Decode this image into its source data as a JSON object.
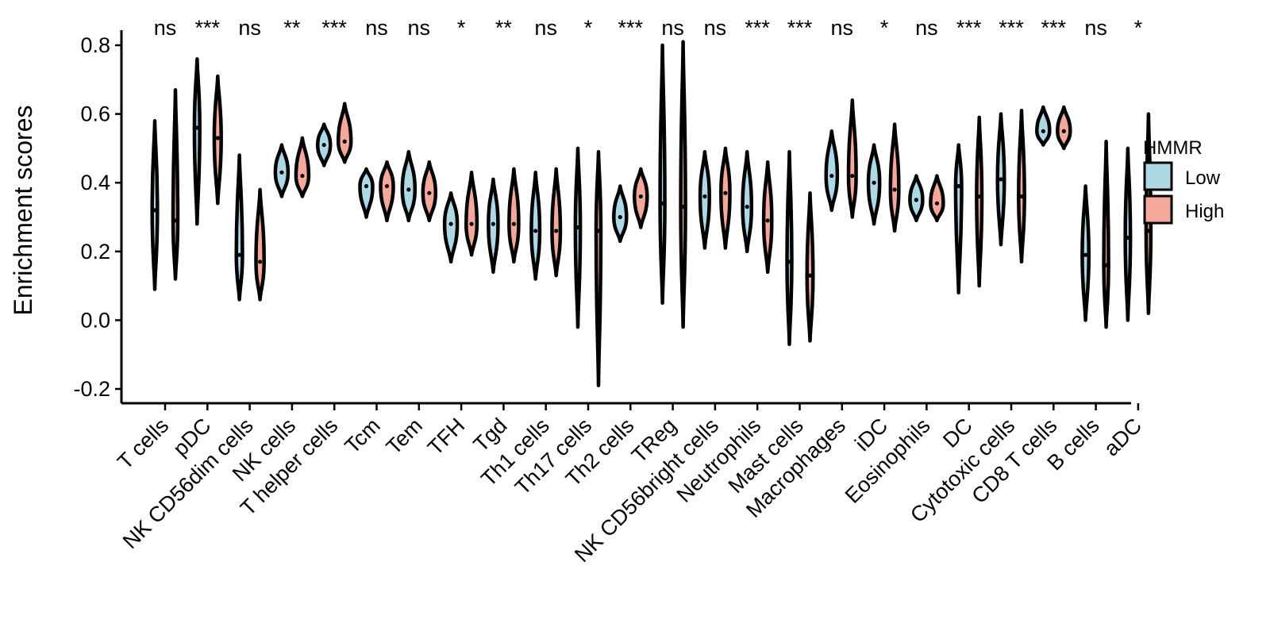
{
  "chart_data": {
    "type": "violin",
    "title": "",
    "xlabel": "",
    "ylabel": "Enrichment scores",
    "ylim": [
      -0.25,
      0.82
    ],
    "yticks": [
      -0.2,
      0.0,
      0.2,
      0.4,
      0.6,
      0.8
    ],
    "ytick_labels": [
      "-0.2",
      "0.0",
      "0.2",
      "0.4",
      "0.6",
      "0.8"
    ],
    "categories": [
      "T cells",
      "pDC",
      "NK CD56dim cells",
      "NK cells",
      "T helper cells",
      "Tcm",
      "Tem",
      "TFH",
      "Tgd",
      "Th1 cells",
      "Th17 cells",
      "Th2 cells",
      "TReg",
      "NK CD56bright cells",
      "Neutrophils",
      "Mast cells",
      "Macrophages",
      "iDC",
      "Eosinophils",
      "DC",
      "Cytotoxic cells",
      "CD8 T cells",
      "B cells",
      "aDC"
    ],
    "significance": [
      "ns",
      "***",
      "ns",
      "**",
      "***",
      "ns",
      "ns",
      "*",
      "**",
      "ns",
      "*",
      "***",
      "ns",
      "ns",
      "***",
      "***",
      "ns",
      "*",
      "ns",
      "***",
      "***",
      "***",
      "ns",
      "*"
    ],
    "legend": {
      "title": "HMMR",
      "position": "right",
      "entries": [
        {
          "name": "Low",
          "color": "#ADD8E6"
        },
        {
          "name": "High",
          "color": "#F4A89A"
        }
      ]
    },
    "series": [
      {
        "name": "Low",
        "color": "#ADD8E6",
        "min": [
          0.09,
          0.28,
          0.06,
          0.36,
          0.45,
          0.3,
          0.29,
          0.17,
          0.14,
          0.12,
          -0.02,
          0.23,
          0.05,
          0.21,
          0.2,
          -0.07,
          0.32,
          0.28,
          0.29,
          0.08,
          0.22,
          0.51,
          0.0,
          0.0
        ],
        "max": [
          0.58,
          0.76,
          0.48,
          0.51,
          0.57,
          0.44,
          0.49,
          0.37,
          0.41,
          0.43,
          0.5,
          0.39,
          0.8,
          0.49,
          0.49,
          0.49,
          0.55,
          0.51,
          0.42,
          0.51,
          0.6,
          0.62,
          0.39,
          0.5
        ],
        "median": [
          0.32,
          0.56,
          0.19,
          0.43,
          0.51,
          0.39,
          0.38,
          0.28,
          0.28,
          0.26,
          0.27,
          0.3,
          0.34,
          0.36,
          0.33,
          0.17,
          0.42,
          0.4,
          0.35,
          0.39,
          0.41,
          0.55,
          0.19,
          0.24
        ]
      },
      {
        "name": "High",
        "color": "#F4A89A",
        "min": [
          0.12,
          0.34,
          0.06,
          0.36,
          0.46,
          0.29,
          0.29,
          0.19,
          0.17,
          0.13,
          -0.19,
          0.27,
          -0.02,
          0.21,
          0.14,
          -0.06,
          0.3,
          0.26,
          0.29,
          0.1,
          0.17,
          0.5,
          -0.02,
          0.02
        ],
        "max": [
          0.67,
          0.71,
          0.38,
          0.53,
          0.63,
          0.46,
          0.46,
          0.43,
          0.44,
          0.44,
          0.49,
          0.44,
          0.81,
          0.5,
          0.46,
          0.37,
          0.64,
          0.57,
          0.42,
          0.59,
          0.61,
          0.62,
          0.52,
          0.6
        ],
        "median": [
          0.29,
          0.53,
          0.17,
          0.42,
          0.52,
          0.39,
          0.37,
          0.28,
          0.28,
          0.26,
          0.26,
          0.36,
          0.33,
          0.37,
          0.29,
          0.13,
          0.42,
          0.38,
          0.34,
          0.36,
          0.36,
          0.55,
          0.16,
          0.26
        ]
      }
    ]
  }
}
